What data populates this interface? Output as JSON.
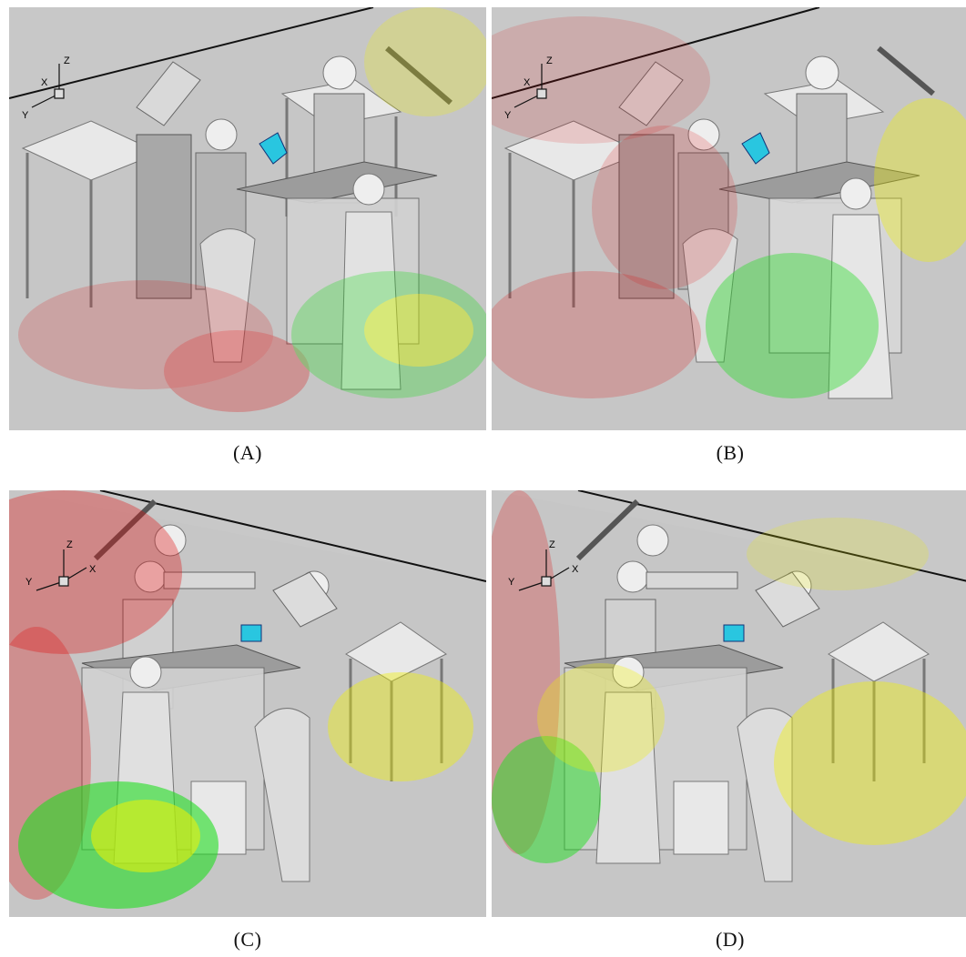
{
  "figure": {
    "panels": [
      {
        "id": "A",
        "caption": "(A)",
        "axis_labels": {
          "x": "X",
          "y": "Y",
          "z": "Z"
        },
        "particle_colors": [
          "red",
          "yellow",
          "green"
        ]
      },
      {
        "id": "B",
        "caption": "(B)",
        "axis_labels": {
          "x": "X",
          "y": "Y",
          "z": "Z"
        },
        "particle_colors": [
          "red",
          "yellow",
          "green"
        ]
      },
      {
        "id": "C",
        "caption": "(C)",
        "axis_labels": {
          "x": "X",
          "y": "Y",
          "z": "Z"
        },
        "particle_colors": [
          "red",
          "yellow",
          "green"
        ]
      },
      {
        "id": "D",
        "caption": "(D)",
        "axis_labels": {
          "x": "X",
          "y": "Y",
          "z": "Z"
        },
        "particle_colors": [
          "red",
          "yellow",
          "green"
        ]
      }
    ],
    "colors": {
      "background": "#c8c8c8",
      "particle_red": "#e01010",
      "particle_yellow": "#f2f200",
      "particle_green": "#22dd22",
      "object_surface": "#e6e6e6",
      "object_shadow": "#8c8c8c",
      "highlight_cyan": "#29c6e0"
    }
  }
}
